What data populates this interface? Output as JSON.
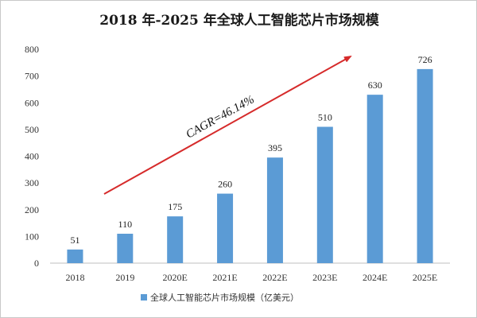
{
  "chart_data": {
    "type": "bar",
    "title": "2018 年-2025 年全球人工智能芯片市场规模",
    "categories": [
      "2018",
      "2019",
      "2020E",
      "2021E",
      "2022E",
      "2023E",
      "2024E",
      "2025E"
    ],
    "series": [
      {
        "name": "全球人工智能芯片市场规模（亿美元）",
        "values": [
          51,
          110,
          175,
          260,
          395,
          510,
          630,
          726
        ]
      }
    ],
    "ylim": [
      0,
      800
    ],
    "yticks": [
      0,
      100,
      200,
      300,
      400,
      500,
      600,
      700,
      800
    ],
    "grid": false,
    "legend_position": "bottom",
    "annotation": "CAGR=46.14%",
    "colors": {
      "bar": "#5b9bd5",
      "arrow": "#d62b2b",
      "axis": "#bfbfbf"
    }
  }
}
